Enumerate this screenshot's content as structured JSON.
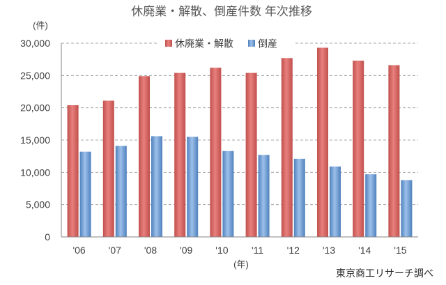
{
  "chart_data": {
    "type": "bar",
    "title": "休廃業・解散、倒産件数 年次推移",
    "ylabel": "(件)",
    "xlabel": "(年)",
    "categories": [
      "'06",
      "'07",
      "'08",
      "'09",
      "'10",
      "'11",
      "'12",
      "'13",
      "'14",
      "'15"
    ],
    "series": [
      {
        "name": "休廃業・解散",
        "color": "#c0504d",
        "highlight": "#e8807d",
        "values": [
          20400,
          21100,
          24900,
          25400,
          26200,
          25400,
          27700,
          29300,
          27300,
          26600
        ]
      },
      {
        "name": "倒産",
        "color": "#4f81bd",
        "highlight": "#9dc0ea",
        "values": [
          13200,
          14100,
          15600,
          15500,
          13300,
          12700,
          12100,
          10900,
          9700,
          8800
        ]
      }
    ],
    "ylim": [
      0,
      30000
    ],
    "yticks": [
      0,
      5000,
      10000,
      15000,
      20000,
      25000,
      30000
    ],
    "ytick_labels": [
      "0",
      "5,000",
      "10,000",
      "15,000",
      "20,000",
      "25,000",
      "30,000"
    ],
    "grid": true,
    "legend": "top-center"
  },
  "source": "東京商工リサーチ調べ"
}
